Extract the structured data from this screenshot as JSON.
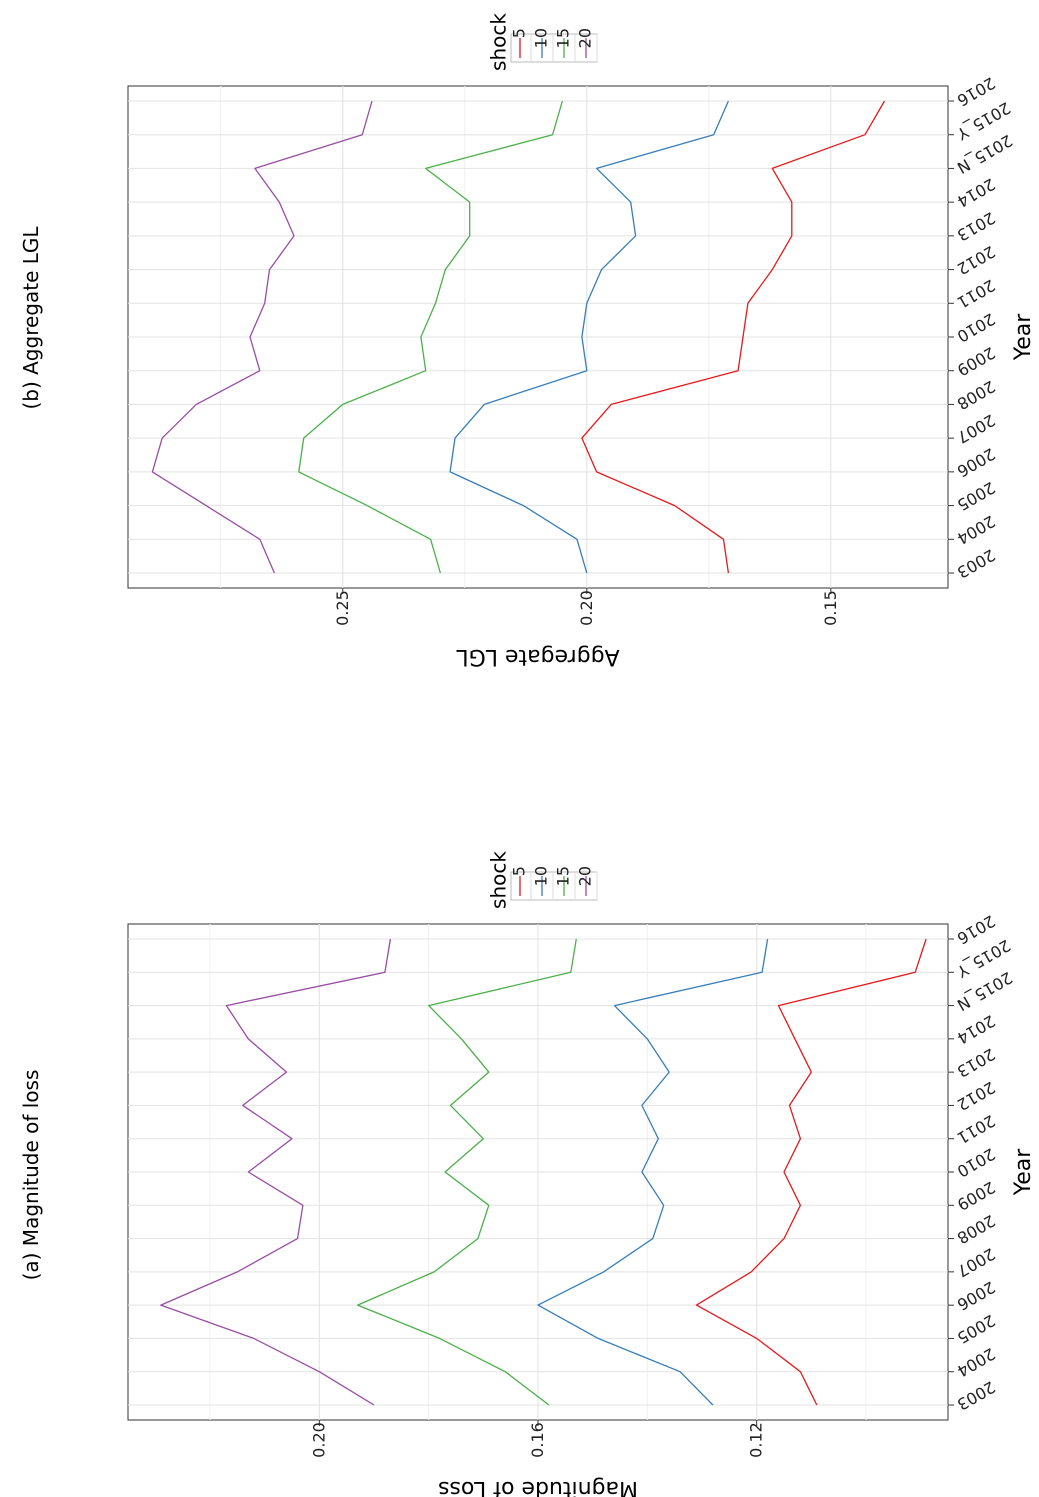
{
  "figure": {
    "captions": [
      "(a) Magnitude of loss",
      "(b) Aggregate LGL"
    ]
  },
  "chart_data": [
    {
      "type": "line",
      "title": "(a) Magnitude of loss",
      "xlabel": "Year",
      "ylabel": "Magnitude of Loss",
      "categories": [
        "2003",
        "2004",
        "2005",
        "2006",
        "2007",
        "2008",
        "2009",
        "2010",
        "2011",
        "2012",
        "2013",
        "2014",
        "2015_N",
        "2015_Y",
        "2016"
      ],
      "ylim": [
        0.085,
        0.235
      ],
      "yticks": [
        "0.12",
        "0.16",
        "0.20"
      ],
      "legend": {
        "title": "shock",
        "placement": "top (rotated page)"
      },
      "series": [
        {
          "name": "5",
          "color": "#e41a1c",
          "values": [
            0.109,
            0.112,
            0.12,
            0.131,
            0.121,
            0.115,
            0.112,
            0.115,
            0.112,
            0.114,
            0.11,
            0.113,
            0.116,
            0.091,
            0.089
          ]
        },
        {
          "name": "10",
          "color": "#377eb8",
          "values": [
            0.128,
            0.134,
            0.149,
            0.16,
            0.148,
            0.139,
            0.137,
            0.141,
            0.138,
            0.141,
            0.136,
            0.14,
            0.146,
            0.119,
            0.118
          ]
        },
        {
          "name": "15",
          "color": "#4daf4a",
          "values": [
            0.158,
            0.166,
            0.178,
            0.193,
            0.179,
            0.171,
            0.169,
            0.177,
            0.17,
            0.176,
            0.169,
            0.174,
            0.18,
            0.154,
            0.153
          ]
        },
        {
          "name": "20",
          "color": "#984ea3",
          "values": [
            0.19,
            0.2,
            0.212,
            0.229,
            0.215,
            0.204,
            0.203,
            0.213,
            0.205,
            0.214,
            0.206,
            0.213,
            0.217,
            0.188,
            0.187
          ]
        }
      ]
    },
    {
      "type": "line",
      "title": "(b) Aggregate LGL",
      "xlabel": "Year",
      "ylabel": "Aggregate LGL",
      "categories": [
        "2003",
        "2004",
        "2005",
        "2006",
        "2007",
        "2008",
        "2009",
        "2010",
        "2011",
        "2012",
        "2013",
        "2014",
        "2015_N",
        "2015_Y",
        "2016"
      ],
      "ylim": [
        0.126,
        0.294
      ],
      "yticks": [
        "0.15",
        "0.20",
        "0.25"
      ],
      "legend": {
        "title": "shock",
        "placement": "top (rotated page)"
      },
      "series": [
        {
          "name": "5",
          "color": "#e41a1c",
          "values": [
            0.171,
            0.172,
            0.182,
            0.198,
            0.201,
            0.195,
            0.169,
            0.168,
            0.167,
            0.162,
            0.158,
            0.158,
            0.162,
            0.143,
            0.139
          ]
        },
        {
          "name": "10",
          "color": "#377eb8",
          "values": [
            0.2,
            0.202,
            0.213,
            0.228,
            0.227,
            0.221,
            0.2,
            0.201,
            0.2,
            0.197,
            0.19,
            0.191,
            0.198,
            0.174,
            0.171
          ]
        },
        {
          "name": "15",
          "color": "#4daf4a",
          "values": [
            0.23,
            0.232,
            0.245,
            0.259,
            0.258,
            0.25,
            0.233,
            0.234,
            0.231,
            0.229,
            0.224,
            0.224,
            0.233,
            0.207,
            0.205
          ]
        },
        {
          "name": "20",
          "color": "#984ea3",
          "values": [
            0.264,
            0.267,
            0.278,
            0.289,
            0.287,
            0.28,
            0.267,
            0.269,
            0.266,
            0.265,
            0.26,
            0.263,
            0.268,
            0.246,
            0.244
          ]
        }
      ]
    }
  ]
}
